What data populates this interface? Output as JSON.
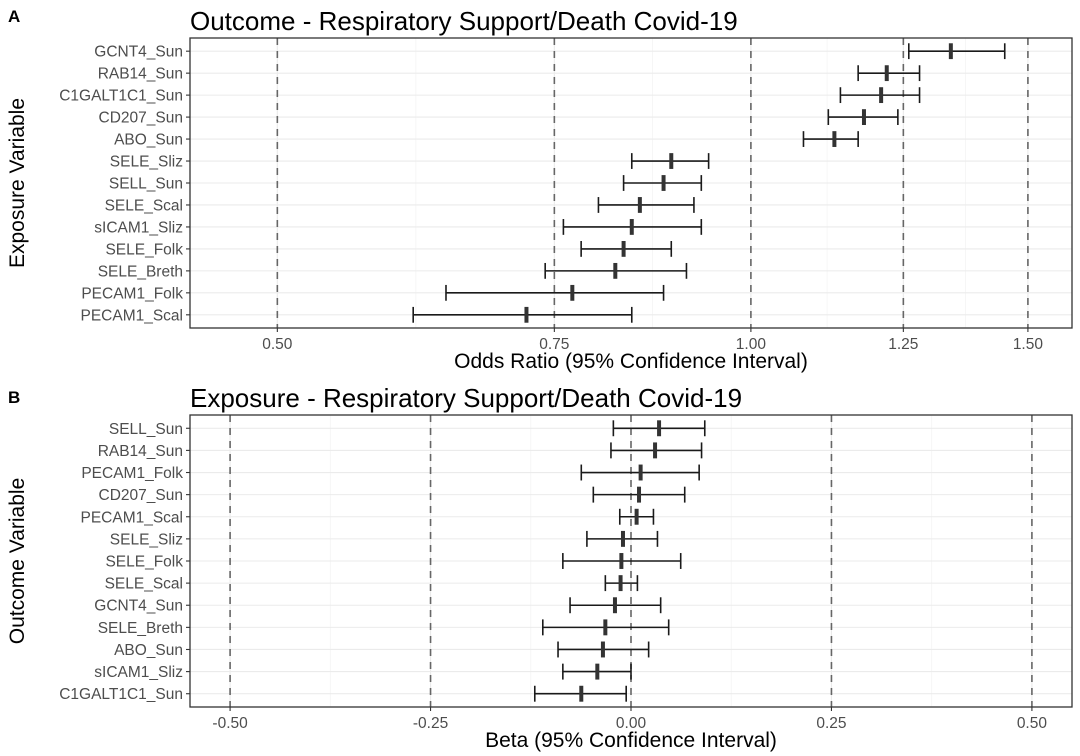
{
  "chart_data": [
    {
      "type": "forest",
      "panel_label": "A",
      "title": "Outcome - Respiratory Support/Death Covid-19",
      "xlabel": "Odds Ratio (95% Confidence Interval)",
      "ylabel": "Exposure Variable",
      "x_scale": "log",
      "xlim": [
        0.44,
        1.6
      ],
      "x_ticks": [
        0.5,
        0.75,
        1.0,
        1.25,
        1.5
      ],
      "x_tick_labels": [
        "0.50",
        "0.75",
        "1.00",
        "1.25",
        "1.50"
      ],
      "reference_lines": [
        0.5,
        0.75,
        1.0,
        1.25,
        1.5
      ],
      "grid": true,
      "rows": [
        {
          "label": "GCNT4_Sun",
          "estimate": 1.34,
          "lower": 1.26,
          "upper": 1.45
        },
        {
          "label": "RAB14_Sun",
          "estimate": 1.22,
          "lower": 1.17,
          "upper": 1.28
        },
        {
          "label": "C1GALT1C1_Sun",
          "estimate": 1.21,
          "lower": 1.14,
          "upper": 1.28
        },
        {
          "label": "CD207_Sun",
          "estimate": 1.18,
          "lower": 1.12,
          "upper": 1.24
        },
        {
          "label": "ABO_Sun",
          "estimate": 1.13,
          "lower": 1.08,
          "upper": 1.17
        },
        {
          "label": "SELE_Sliz",
          "estimate": 0.89,
          "lower": 0.84,
          "upper": 0.94
        },
        {
          "label": "SELL_Sun",
          "estimate": 0.88,
          "lower": 0.83,
          "upper": 0.93
        },
        {
          "label": "SELE_Scal",
          "estimate": 0.85,
          "lower": 0.8,
          "upper": 0.92
        },
        {
          "label": "sICAM1_Sliz",
          "estimate": 0.84,
          "lower": 0.76,
          "upper": 0.93
        },
        {
          "label": "SELE_Folk",
          "estimate": 0.83,
          "lower": 0.78,
          "upper": 0.89
        },
        {
          "label": "SELE_Breth",
          "estimate": 0.82,
          "lower": 0.74,
          "upper": 0.91
        },
        {
          "label": "PECAM1_Folk",
          "estimate": 0.77,
          "lower": 0.64,
          "upper": 0.88
        },
        {
          "label": "PECAM1_Scal",
          "estimate": 0.72,
          "lower": 0.61,
          "upper": 0.84
        }
      ]
    },
    {
      "type": "forest",
      "panel_label": "B",
      "title": "Exposure - Respiratory Support/Death Covid-19",
      "xlabel": "Beta (95% Confidence Interval)",
      "ylabel": "Outcome Variable",
      "x_scale": "linear",
      "xlim": [
        -0.55,
        0.55
      ],
      "x_ticks": [
        -0.5,
        -0.25,
        0.0,
        0.25,
        0.5
      ],
      "x_tick_labels": [
        "-0.50",
        "-0.25",
        "0.00",
        "0.25",
        "0.50"
      ],
      "reference_lines": [
        -0.5,
        -0.25,
        0.0,
        0.25,
        0.5
      ],
      "grid": true,
      "rows": [
        {
          "label": "SELL_Sun",
          "estimate": 0.035,
          "lower": -0.022,
          "upper": 0.092
        },
        {
          "label": "RAB14_Sun",
          "estimate": 0.03,
          "lower": -0.025,
          "upper": 0.088
        },
        {
          "label": "PECAM1_Folk",
          "estimate": 0.012,
          "lower": -0.062,
          "upper": 0.085
        },
        {
          "label": "CD207_Sun",
          "estimate": 0.01,
          "lower": -0.047,
          "upper": 0.067
        },
        {
          "label": "PECAM1_Scal",
          "estimate": 0.007,
          "lower": -0.014,
          "upper": 0.028
        },
        {
          "label": "SELE_Sliz",
          "estimate": -0.01,
          "lower": -0.055,
          "upper": 0.033
        },
        {
          "label": "SELE_Folk",
          "estimate": -0.012,
          "lower": -0.085,
          "upper": 0.062
        },
        {
          "label": "SELE_Scal",
          "estimate": -0.013,
          "lower": -0.032,
          "upper": 0.008
        },
        {
          "label": "GCNT4_Sun",
          "estimate": -0.02,
          "lower": -0.076,
          "upper": 0.037
        },
        {
          "label": "SELE_Breth",
          "estimate": -0.032,
          "lower": -0.11,
          "upper": 0.047
        },
        {
          "label": "ABO_Sun",
          "estimate": -0.035,
          "lower": -0.091,
          "upper": 0.022
        },
        {
          "label": "sICAM1_Sliz",
          "estimate": -0.042,
          "lower": -0.085,
          "upper": 0.0
        },
        {
          "label": "C1GALT1C1_Sun",
          "estimate": -0.062,
          "lower": -0.12,
          "upper": -0.006
        }
      ]
    }
  ]
}
